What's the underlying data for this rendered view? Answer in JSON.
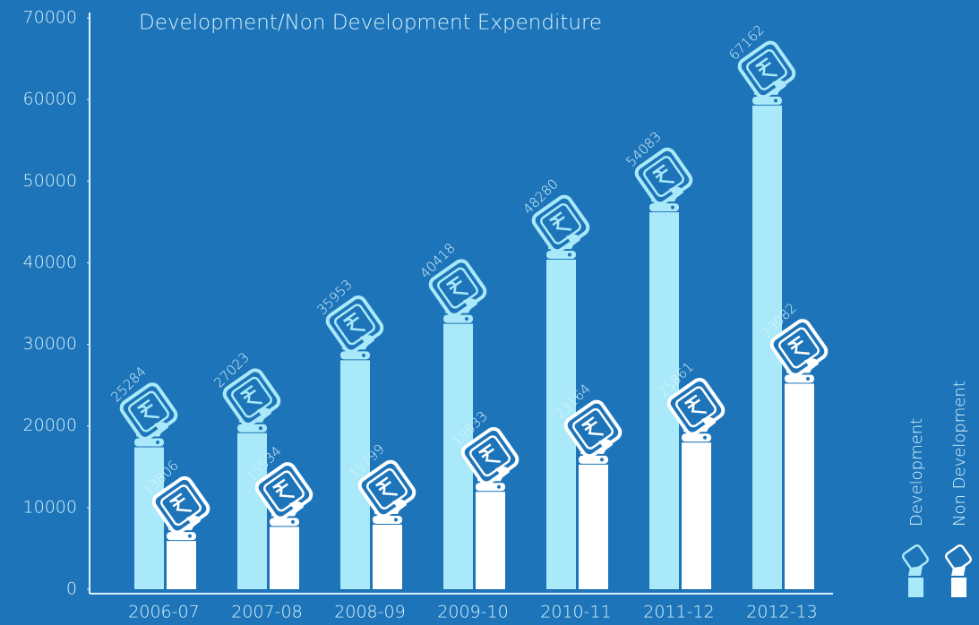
{
  "chart_data": {
    "type": "bar",
    "title": "Development/Non Development Expenditure",
    "categories": [
      "2006-07",
      "2007-08",
      "2008-09",
      "2009-10",
      "2010-11",
      "2011-12",
      "2012-13"
    ],
    "series": [
      {
        "name": "Development",
        "color": "#a9e9f9",
        "values": [
          25284,
          27023,
          35953,
          40418,
          48280,
          54083,
          67162
        ]
      },
      {
        "name": "Non Development",
        "color": "#ffffff",
        "values": [
          13806,
          15534,
          15799,
          19833,
          23164,
          25861,
          33082
        ]
      }
    ],
    "ylim": [
      0,
      70000
    ],
    "yticks": [
      0,
      10000,
      20000,
      30000,
      40000,
      50000,
      60000,
      70000
    ],
    "grid": false,
    "legend": "right"
  }
}
